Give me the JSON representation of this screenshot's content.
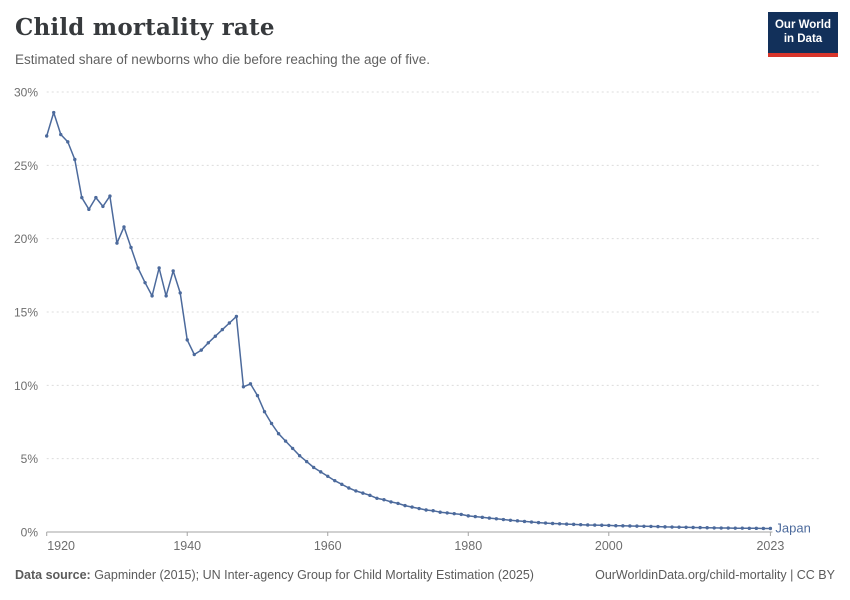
{
  "header": {
    "title": "Child mortality rate",
    "subtitle": "Estimated share of newborns who die before reaching the age of five.",
    "logo_line1": "Our World",
    "logo_line2": "in Data"
  },
  "footer": {
    "datasource_label": "Data source:",
    "datasource_text": " Gapminder (2015); UN Inter-agency Group for Child Mortality Estimation (2025)",
    "link_text": "OurWorldinData.org/child-mortality | CC BY"
  },
  "colors": {
    "line": "#4c6a9c",
    "entity_label": "#4c6a9c",
    "grid": "#dcdcdc",
    "axis": "#a3a3a3",
    "tick_label": "#6e6e6e",
    "logo_bg": "#12305a",
    "logo_bar": "#d8352b",
    "title": "#373a3d",
    "subtitle": "#616161",
    "footer": "#5b5b5b"
  },
  "chart_data": {
    "type": "line",
    "title": "Child mortality rate",
    "subtitle": "Estimated share of newborns who die before reaching the age of five.",
    "xlabel": "",
    "ylabel": "",
    "xlim": [
      1920,
      2023
    ],
    "ylim": [
      0,
      30
    ],
    "x_ticks": [
      1920,
      1940,
      1960,
      1980,
      2000,
      2023
    ],
    "y_ticks": [
      0,
      5,
      10,
      15,
      20,
      25,
      30
    ],
    "y_tick_suffix": "%",
    "grid": true,
    "legend_position": "end-of-line",
    "series": [
      {
        "name": "Japan",
        "x": [
          1920,
          1921,
          1922,
          1923,
          1924,
          1925,
          1926,
          1927,
          1928,
          1929,
          1930,
          1931,
          1932,
          1933,
          1934,
          1935,
          1936,
          1937,
          1938,
          1939,
          1940,
          1941,
          1942,
          1943,
          1944,
          1945,
          1946,
          1947,
          1948,
          1949,
          1950,
          1951,
          1952,
          1953,
          1954,
          1955,
          1956,
          1957,
          1958,
          1959,
          1960,
          1961,
          1962,
          1963,
          1964,
          1965,
          1966,
          1967,
          1968,
          1969,
          1970,
          1971,
          1972,
          1973,
          1974,
          1975,
          1976,
          1977,
          1978,
          1979,
          1980,
          1981,
          1982,
          1983,
          1984,
          1985,
          1986,
          1987,
          1988,
          1989,
          1990,
          1991,
          1992,
          1993,
          1994,
          1995,
          1996,
          1997,
          1998,
          1999,
          2000,
          2001,
          2002,
          2003,
          2004,
          2005,
          2006,
          2007,
          2008,
          2009,
          2010,
          2011,
          2012,
          2013,
          2014,
          2015,
          2016,
          2017,
          2018,
          2019,
          2020,
          2021,
          2022,
          2023
        ],
        "values": [
          27.0,
          28.6,
          27.1,
          26.6,
          25.4,
          22.8,
          22.0,
          22.8,
          22.2,
          22.9,
          19.7,
          20.8,
          19.4,
          18.0,
          17.0,
          16.1,
          18.0,
          16.1,
          17.8,
          16.3,
          13.1,
          12.1,
          12.4,
          12.9,
          13.35,
          13.8,
          14.25,
          14.7,
          9.9,
          10.1,
          9.3,
          8.2,
          7.4,
          6.7,
          6.2,
          5.7,
          5.2,
          4.8,
          4.4,
          4.1,
          3.8,
          3.5,
          3.25,
          3.0,
          2.8,
          2.65,
          2.5,
          2.3,
          2.2,
          2.05,
          1.95,
          1.8,
          1.7,
          1.6,
          1.5,
          1.45,
          1.35,
          1.3,
          1.25,
          1.2,
          1.1,
          1.05,
          1.0,
          0.95,
          0.9,
          0.85,
          0.8,
          0.76,
          0.72,
          0.68,
          0.64,
          0.61,
          0.58,
          0.56,
          0.54,
          0.52,
          0.5,
          0.48,
          0.47,
          0.46,
          0.45,
          0.43,
          0.42,
          0.41,
          0.4,
          0.39,
          0.38,
          0.37,
          0.35,
          0.34,
          0.33,
          0.32,
          0.31,
          0.3,
          0.29,
          0.28,
          0.27,
          0.27,
          0.26,
          0.26,
          0.25,
          0.25,
          0.24,
          0.24
        ]
      }
    ]
  }
}
